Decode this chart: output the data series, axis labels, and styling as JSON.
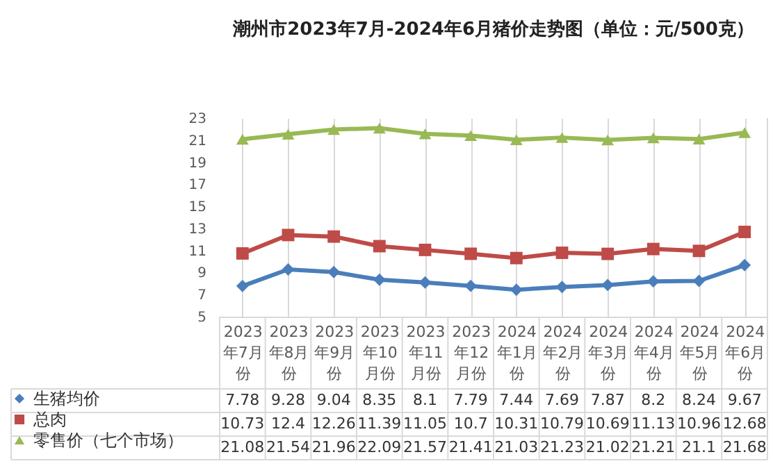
{
  "chart_data": {
    "type": "line",
    "title": "潮州市2023年7月-2024年6月猪价走势图（单位：元/500克）",
    "categories": [
      "2023年7月份",
      "2023年8月份",
      "2023年9月份",
      "2023年10月份",
      "2023年11月份",
      "2023年12月份",
      "2024年1月份",
      "2024年2月份",
      "2024年3月份",
      "2024年4月份",
      "2024年5月份",
      "2024年6月份"
    ],
    "series": [
      {
        "name": "生猪均价",
        "color": "#4a7ebb",
        "marker": "diamond",
        "values": [
          7.78,
          9.28,
          9.04,
          8.35,
          8.1,
          7.79,
          7.44,
          7.69,
          7.87,
          8.2,
          8.24,
          9.67
        ]
      },
      {
        "name": "总肉",
        "color": "#be4b48",
        "marker": "square",
        "values": [
          10.73,
          12.4,
          12.26,
          11.39,
          11.05,
          10.7,
          10.31,
          10.79,
          10.69,
          11.13,
          10.96,
          12.68
        ]
      },
      {
        "name": "零售价（七个市场）",
        "color": "#98b954",
        "marker": "triangle",
        "values": [
          21.08,
          21.54,
          21.96,
          22.09,
          21.57,
          21.41,
          21.03,
          21.23,
          21.02,
          21.21,
          21.1,
          21.68
        ]
      }
    ],
    "ylim": [
      5,
      23
    ],
    "yticks": [
      5,
      7,
      9,
      11,
      13,
      15,
      17,
      19,
      21,
      23
    ],
    "grid": "x",
    "legend": "bottom left",
    "data_labels": true
  }
}
